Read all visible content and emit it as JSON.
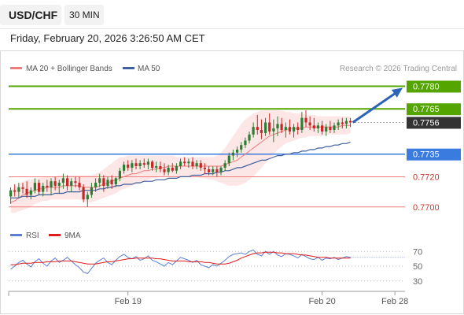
{
  "header": {
    "symbol": "USD/CHF",
    "interval": "30 MIN",
    "datetime": "Friday, February 20, 2026 3:26:50 AM CET"
  },
  "legend": {
    "ma20": "MA 20 + Bollinger Bands",
    "ma50": "MA 50",
    "credit": "Research © 2026 Trading Central",
    "rsi": "RSI",
    "ma9": "9MA"
  },
  "colors": {
    "candle_up": "#2e7d32",
    "candle_down": "#c62828",
    "bollinger_fill": "#fde2e2",
    "ma20": "#ef7b7b",
    "ma50": "#3f5f9f",
    "green_level": "#55a500",
    "blue_level": "#3a7be0",
    "red_level": "#ef7b7b",
    "current_price": "#333333",
    "arrow": "#2b63b6",
    "rsi": "#5b7fd6",
    "ma9": "#e01b1b"
  },
  "chart_data": {
    "type": "candlestick",
    "price_ylim": [
      0.7691,
      0.7786
    ],
    "price_levels": [
      {
        "value": 0.778,
        "label": "0.7780",
        "kind": "resistance"
      },
      {
        "value": 0.7765,
        "label": "0.7765",
        "kind": "resistance"
      },
      {
        "value": 0.7756,
        "label": "0.7756",
        "kind": "current"
      },
      {
        "value": 0.7735,
        "label": "0.7735",
        "kind": "pivot"
      },
      {
        "value": 0.772,
        "label": "0.7720",
        "kind": "support"
      },
      {
        "value": 0.77,
        "label": "0.7700",
        "kind": "support"
      }
    ],
    "candles_ohlc": [
      [
        0.7707,
        0.7713,
        0.7702,
        0.7711
      ],
      [
        0.7711,
        0.7715,
        0.7707,
        0.771
      ],
      [
        0.771,
        0.7716,
        0.7706,
        0.7713
      ],
      [
        0.7713,
        0.7716,
        0.7709,
        0.7712
      ],
      [
        0.7712,
        0.7717,
        0.7706,
        0.7708
      ],
      [
        0.7708,
        0.7713,
        0.7705,
        0.7711
      ],
      [
        0.7711,
        0.7719,
        0.7709,
        0.7716
      ],
      [
        0.7716,
        0.7718,
        0.7708,
        0.771
      ],
      [
        0.771,
        0.7716,
        0.7707,
        0.7714
      ],
      [
        0.7714,
        0.7718,
        0.771,
        0.7713
      ],
      [
        0.7713,
        0.7719,
        0.7708,
        0.7717
      ],
      [
        0.7717,
        0.772,
        0.7711,
        0.7714
      ],
      [
        0.7714,
        0.7718,
        0.7709,
        0.7716
      ],
      [
        0.7716,
        0.7722,
        0.7712,
        0.7719
      ],
      [
        0.7719,
        0.7721,
        0.7711,
        0.7714
      ],
      [
        0.7714,
        0.7719,
        0.771,
        0.7717
      ],
      [
        0.7717,
        0.772,
        0.7713,
        0.7716
      ],
      [
        0.7716,
        0.772,
        0.7711,
        0.7713
      ],
      [
        0.7713,
        0.7715,
        0.7703,
        0.7705
      ],
      [
        0.7705,
        0.771,
        0.77,
        0.7708
      ],
      [
        0.7708,
        0.7716,
        0.7706,
        0.7713
      ],
      [
        0.7713,
        0.7719,
        0.771,
        0.7716
      ],
      [
        0.7716,
        0.7722,
        0.7713,
        0.7719
      ],
      [
        0.7719,
        0.7721,
        0.771,
        0.7714
      ],
      [
        0.7714,
        0.772,
        0.7712,
        0.7718
      ],
      [
        0.7718,
        0.7721,
        0.7712,
        0.7715
      ],
      [
        0.7715,
        0.772,
        0.7713,
        0.7719
      ],
      [
        0.7719,
        0.7726,
        0.7717,
        0.7724
      ],
      [
        0.7724,
        0.773,
        0.7722,
        0.7728
      ],
      [
        0.7728,
        0.7731,
        0.7724,
        0.7726
      ],
      [
        0.7726,
        0.7731,
        0.7723,
        0.7729
      ],
      [
        0.7729,
        0.7732,
        0.7725,
        0.7727
      ],
      [
        0.7727,
        0.7731,
        0.7725,
        0.7729
      ],
      [
        0.7729,
        0.7732,
        0.7726,
        0.7728
      ],
      [
        0.7728,
        0.7732,
        0.7725,
        0.773
      ],
      [
        0.773,
        0.7731,
        0.7724,
        0.7726
      ],
      [
        0.7726,
        0.773,
        0.7723,
        0.7727
      ],
      [
        0.7727,
        0.773,
        0.7723,
        0.7725
      ],
      [
        0.7725,
        0.7729,
        0.7721,
        0.7723
      ],
      [
        0.7723,
        0.7728,
        0.7721,
        0.7726
      ],
      [
        0.7726,
        0.7729,
        0.7723,
        0.7724
      ],
      [
        0.7724,
        0.7729,
        0.7722,
        0.7727
      ],
      [
        0.7727,
        0.7732,
        0.7725,
        0.773
      ],
      [
        0.773,
        0.7733,
        0.7727,
        0.7729
      ],
      [
        0.7729,
        0.7732,
        0.7726,
        0.773
      ],
      [
        0.773,
        0.7733,
        0.7725,
        0.7727
      ],
      [
        0.7727,
        0.7731,
        0.7725,
        0.7729
      ],
      [
        0.7729,
        0.7731,
        0.7724,
        0.7726
      ],
      [
        0.7726,
        0.7729,
        0.7722,
        0.7725
      ],
      [
        0.7725,
        0.7727,
        0.7721,
        0.7723
      ],
      [
        0.7723,
        0.7727,
        0.7721,
        0.7725
      ],
      [
        0.7725,
        0.7727,
        0.772,
        0.7723
      ],
      [
        0.7723,
        0.7727,
        0.7721,
        0.7726
      ],
      [
        0.7726,
        0.7731,
        0.7724,
        0.7729
      ],
      [
        0.7729,
        0.7736,
        0.7727,
        0.7734
      ],
      [
        0.7734,
        0.7738,
        0.7731,
        0.7736
      ],
      [
        0.7736,
        0.774,
        0.7733,
        0.7738
      ],
      [
        0.7738,
        0.7743,
        0.7736,
        0.7741
      ],
      [
        0.7741,
        0.7746,
        0.7739,
        0.7744
      ],
      [
        0.7744,
        0.775,
        0.7742,
        0.7748
      ],
      [
        0.7748,
        0.7756,
        0.7746,
        0.7753
      ],
      [
        0.7753,
        0.7761,
        0.7748,
        0.7751
      ],
      [
        0.7751,
        0.7758,
        0.7745,
        0.7749
      ],
      [
        0.7749,
        0.7759,
        0.7747,
        0.7756
      ],
      [
        0.7756,
        0.7762,
        0.7748,
        0.775
      ],
      [
        0.775,
        0.7758,
        0.7743,
        0.7752
      ],
      [
        0.7752,
        0.776,
        0.7747,
        0.7755
      ],
      [
        0.7755,
        0.7759,
        0.7749,
        0.7751
      ],
      [
        0.7751,
        0.7756,
        0.7746,
        0.7753
      ],
      [
        0.7753,
        0.7758,
        0.7748,
        0.775
      ],
      [
        0.775,
        0.7755,
        0.7746,
        0.7753
      ],
      [
        0.7753,
        0.7756,
        0.7748,
        0.7751
      ],
      [
        0.7751,
        0.7763,
        0.7749,
        0.7759
      ],
      [
        0.7759,
        0.7764,
        0.7753,
        0.7756
      ],
      [
        0.7756,
        0.776,
        0.7751,
        0.7754
      ],
      [
        0.7754,
        0.7759,
        0.775,
        0.7752
      ],
      [
        0.7752,
        0.7756,
        0.7749,
        0.7754
      ],
      [
        0.7754,
        0.7757,
        0.7748,
        0.775
      ],
      [
        0.775,
        0.7755,
        0.7747,
        0.7753
      ],
      [
        0.7753,
        0.7757,
        0.7749,
        0.7751
      ],
      [
        0.7751,
        0.7756,
        0.7749,
        0.7754
      ],
      [
        0.7754,
        0.7758,
        0.7751,
        0.7756
      ],
      [
        0.7756,
        0.7759,
        0.7752,
        0.7755
      ],
      [
        0.7755,
        0.7759,
        0.7752,
        0.7757
      ],
      [
        0.7757,
        0.7759,
        0.7753,
        0.7756
      ]
    ],
    "ma20": [
      0.7703,
      0.7704,
      0.7706,
      0.7708,
      0.7709,
      0.771,
      0.7711,
      0.7712,
      0.7712,
      0.7713,
      0.7713,
      0.7713,
      0.7713,
      0.7714,
      0.7714,
      0.7714,
      0.7714,
      0.7714,
      0.7713,
      0.7713,
      0.7713,
      0.7713,
      0.7714,
      0.7715,
      0.7716,
      0.7717,
      0.7718,
      0.7719,
      0.772,
      0.7721,
      0.7722,
      0.7722,
      0.7723,
      0.7724,
      0.7724,
      0.7725,
      0.7725,
      0.7726,
      0.7726,
      0.7727,
      0.7727,
      0.7727,
      0.7727,
      0.7727,
      0.7727,
      0.7727,
      0.7727,
      0.7727,
      0.7727,
      0.7727,
      0.7727,
      0.7727,
      0.7727,
      0.7728,
      0.7729,
      0.773,
      0.7731,
      0.7733,
      0.7735,
      0.7737,
      0.7739,
      0.7741,
      0.7743,
      0.7745,
      0.7747,
      0.7748,
      0.7749,
      0.775,
      0.7751,
      0.7752,
      0.7752,
      0.7752,
      0.7752,
      0.7753,
      0.7753,
      0.7753,
      0.7753,
      0.7753,
      0.7753,
      0.7753,
      0.7753,
      0.7753,
      0.7754,
      0.7754,
      0.7754
    ],
    "ma50": [
      0.7706,
      0.7706,
      0.7706,
      0.7707,
      0.7707,
      0.7707,
      0.7707,
      0.7708,
      0.7708,
      0.7708,
      0.7708,
      0.7709,
      0.7709,
      0.7709,
      0.771,
      0.771,
      0.771,
      0.771,
      0.7711,
      0.7711,
      0.7711,
      0.7711,
      0.7712,
      0.7712,
      0.7713,
      0.7713,
      0.7714,
      0.7714,
      0.7715,
      0.7715,
      0.7715,
      0.7716,
      0.7716,
      0.7717,
      0.7717,
      0.7717,
      0.7718,
      0.7718,
      0.7718,
      0.7719,
      0.7719,
      0.7719,
      0.772,
      0.772,
      0.772,
      0.7721,
      0.7721,
      0.7721,
      0.7722,
      0.7722,
      0.7722,
      0.7723,
      0.7723,
      0.7724,
      0.7724,
      0.7725,
      0.7726,
      0.7726,
      0.7727,
      0.7728,
      0.7729,
      0.773,
      0.7731,
      0.7731,
      0.7732,
      0.7733,
      0.7734,
      0.7734,
      0.7735,
      0.7735,
      0.7736,
      0.7736,
      0.7737,
      0.7737,
      0.7738,
      0.7738,
      0.7739,
      0.7739,
      0.774,
      0.774,
      0.7741,
      0.7741,
      0.7742,
      0.7742,
      0.7743
    ],
    "bb_upper": [
      0.7711,
      0.7713,
      0.7715,
      0.7717,
      0.7718,
      0.7718,
      0.7719,
      0.7719,
      0.772,
      0.772,
      0.772,
      0.772,
      0.7721,
      0.7721,
      0.7721,
      0.7721,
      0.7721,
      0.7721,
      0.7721,
      0.7721,
      0.7721,
      0.7722,
      0.7723,
      0.7725,
      0.7727,
      0.7729,
      0.7731,
      0.7733,
      0.7733,
      0.7734,
      0.7734,
      0.7734,
      0.7734,
      0.7734,
      0.7734,
      0.7734,
      0.7734,
      0.7734,
      0.7734,
      0.7734,
      0.7734,
      0.7733,
      0.7733,
      0.7733,
      0.7733,
      0.7733,
      0.7733,
      0.7733,
      0.7733,
      0.7733,
      0.7733,
      0.7734,
      0.7736,
      0.7739,
      0.7743,
      0.7747,
      0.7751,
      0.7755,
      0.7758,
      0.776,
      0.7762,
      0.7763,
      0.7764,
      0.7764,
      0.7764,
      0.7764,
      0.7764,
      0.7764,
      0.7763,
      0.7763,
      0.7762,
      0.7762,
      0.7762,
      0.7761,
      0.7761,
      0.7761,
      0.776,
      0.776,
      0.776,
      0.776,
      0.776,
      0.776,
      0.776,
      0.776,
      0.776
    ],
    "bb_lower": [
      0.7696,
      0.7696,
      0.7697,
      0.7698,
      0.7699,
      0.77,
      0.7702,
      0.7703,
      0.7704,
      0.7704,
      0.7705,
      0.7705,
      0.7705,
      0.7705,
      0.7705,
      0.7705,
      0.7705,
      0.7705,
      0.7704,
      0.7703,
      0.7703,
      0.7704,
      0.7705,
      0.7706,
      0.7707,
      0.7708,
      0.7709,
      0.7711,
      0.7712,
      0.7713,
      0.7714,
      0.7715,
      0.7716,
      0.7717,
      0.7718,
      0.7719,
      0.7719,
      0.772,
      0.772,
      0.772,
      0.772,
      0.772,
      0.772,
      0.772,
      0.772,
      0.772,
      0.772,
      0.7719,
      0.7719,
      0.7718,
      0.7718,
      0.7717,
      0.7716,
      0.7715,
      0.7714,
      0.7714,
      0.7714,
      0.7715,
      0.7716,
      0.7718,
      0.772,
      0.7723,
      0.7726,
      0.7729,
      0.7732,
      0.7735,
      0.7738,
      0.774,
      0.7742,
      0.7743,
      0.7744,
      0.7745,
      0.7746,
      0.7746,
      0.7747,
      0.7747,
      0.7747,
      0.7747,
      0.7748,
      0.7748,
      0.7748,
      0.7748,
      0.7748,
      0.7748,
      0.7749
    ],
    "rsi": [
      46,
      50,
      55,
      58,
      53,
      49,
      56,
      60,
      54,
      50,
      57,
      61,
      55,
      58,
      62,
      57,
      52,
      48,
      42,
      40,
      47,
      54,
      58,
      61,
      55,
      52,
      58,
      63,
      66,
      62,
      60,
      63,
      58,
      60,
      64,
      58,
      56,
      53,
      50,
      55,
      52,
      57,
      62,
      60,
      58,
      55,
      58,
      52,
      50,
      48,
      52,
      50,
      54,
      58,
      63,
      66,
      67,
      68,
      66,
      70,
      72,
      66,
      64,
      70,
      66,
      70,
      65,
      63,
      67,
      66,
      64,
      61,
      66,
      63,
      60,
      59,
      62,
      58,
      61,
      60,
      62,
      59,
      61,
      63,
      62
    ],
    "ma9": [
      52,
      52,
      53,
      54,
      54,
      54,
      55,
      55,
      55,
      56,
      56,
      56,
      57,
      57,
      57,
      57,
      56,
      55,
      54,
      53,
      53,
      53,
      54,
      55,
      56,
      56,
      57,
      58,
      59,
      60,
      60,
      61,
      61,
      61,
      61,
      61,
      60,
      60,
      59,
      58,
      57,
      57,
      57,
      57,
      56,
      56,
      56,
      56,
      55,
      55,
      54,
      53,
      53,
      53,
      54,
      56,
      58,
      61,
      63,
      65,
      67,
      68,
      68,
      69,
      69,
      69,
      68,
      68,
      67,
      67,
      67,
      66,
      65,
      65,
      64,
      63,
      62,
      62,
      62,
      61,
      61,
      61,
      61,
      61,
      61
    ],
    "rsi_ylim": [
      18,
      82
    ],
    "rsi_levels": [
      {
        "value": 70,
        "label": "70"
      },
      {
        "value": 50,
        "label": "50"
      },
      {
        "value": 30,
        "label": "30"
      }
    ],
    "x_ticks": [
      {
        "index": 29,
        "label": "Feb 19"
      },
      {
        "index": 77,
        "label": "Feb 20"
      },
      {
        "index": 95,
        "label": "Feb 28"
      }
    ],
    "x_total": 98
  }
}
